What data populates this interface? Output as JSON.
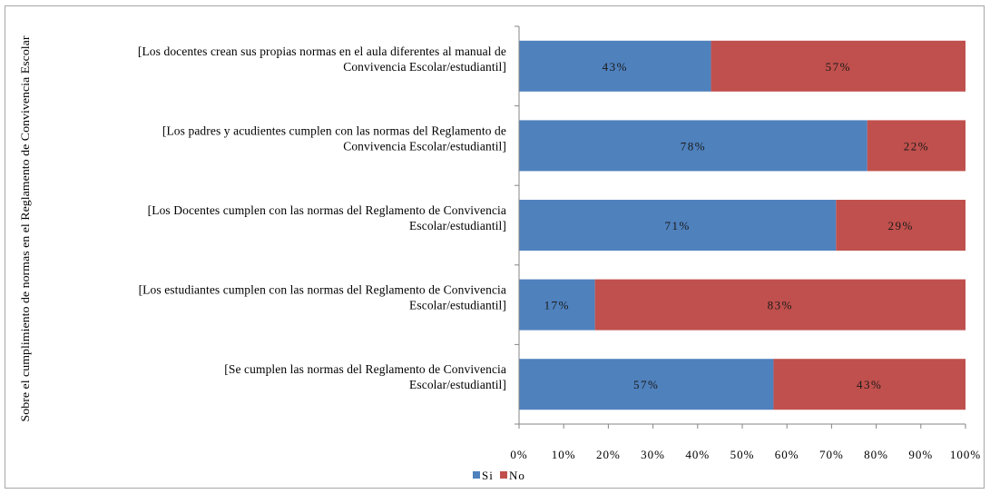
{
  "chart_data": {
    "type": "bar",
    "orientation": "horizontal",
    "stacked": "percent",
    "ylabel": "Sobre el cumplimiento de normas en el Reglamento de Convivencia Escolar",
    "xlabel": "",
    "xlim": [
      0,
      100
    ],
    "x_ticks": [
      "0%",
      "10%",
      "20%",
      "30%",
      "40%",
      "50%",
      "60%",
      "70%",
      "80%",
      "90%",
      "100%"
    ],
    "grid": false,
    "legend_position": "bottom",
    "categories": [
      [
        "[Los docentes crean sus propias normas en el aula diferentes al manual de",
        "Convivencia Escolar/estudiantil]"
      ],
      [
        "[Los padres y acudientes cumplen con las normas del Reglamento de",
        "Convivencia Escolar/estudiantil]"
      ],
      [
        "[Los Docentes cumplen con las normas del Reglamento de Convivencia",
        "Escolar/estudiantil]"
      ],
      [
        "[Los estudiantes cumplen con las normas del Reglamento de Convivencia",
        "Escolar/estudiantil]"
      ],
      [
        "[Se cumplen las normas del Reglamento de Convivencia",
        "Escolar/estudiantil]"
      ]
    ],
    "series": [
      {
        "name": "Si",
        "color": "#4f81bd",
        "values": [
          43,
          78,
          71,
          17,
          57
        ],
        "labels": [
          "43%",
          "78%",
          "71%",
          "17%",
          "57%"
        ]
      },
      {
        "name": "No",
        "color": "#c0504d",
        "values": [
          57,
          22,
          29,
          83,
          43
        ],
        "labels": [
          "57%",
          "22%",
          "29%",
          "83%",
          "43%"
        ]
      }
    ]
  }
}
